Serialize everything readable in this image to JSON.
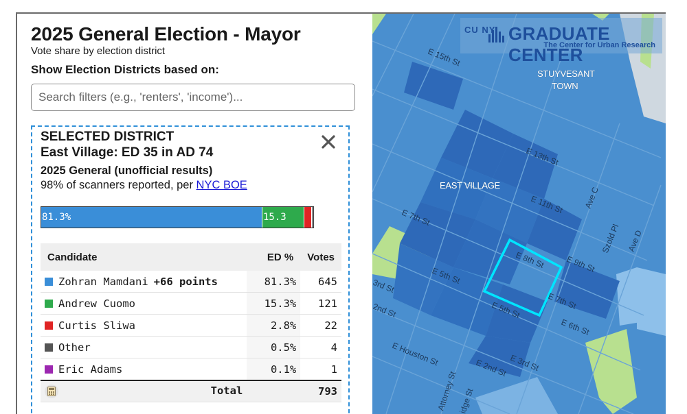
{
  "header": {
    "title": "2025 General Election - Mayor",
    "subtitle": "Vote share by election district",
    "filter_label": "Show Election Districts based on:"
  },
  "search": {
    "placeholder": "Search filters (e.g., 'renters', 'income')...",
    "value": ""
  },
  "selected": {
    "heading": "SELECTED DISTRICT",
    "district": "East Village: ED 35 in AD 74",
    "results_title": "2025 General (unofficial results)",
    "reported_text": "98% of scanners reported, per ",
    "reported_link": "NYC BOE",
    "bar": [
      {
        "share": 81.3,
        "label": "81.3%",
        "color": "#3a8ed8"
      },
      {
        "share": 15.3,
        "label": "15.3",
        "color": "#2eaa4c"
      },
      {
        "share": 2.8,
        "label": "",
        "color": "#e02424"
      },
      {
        "share": 0.5,
        "label": "",
        "color": "#555555"
      },
      {
        "share": 0.1,
        "label": "",
        "color": "#9c27b0"
      }
    ],
    "table": {
      "headers": {
        "candidate": "Candidate",
        "pct": "ED %",
        "votes": "Votes"
      },
      "rows": [
        {
          "name": "Zohran Mamdani",
          "lead": "+66 points",
          "pct": "81.3%",
          "votes": "645",
          "color": "#3a8ed8"
        },
        {
          "name": "Andrew Cuomo",
          "lead": "",
          "pct": "15.3%",
          "votes": "121",
          "color": "#2eaa4c"
        },
        {
          "name": "Curtis Sliwa",
          "lead": "",
          "pct": "2.8%",
          "votes": "22",
          "color": "#e02424"
        },
        {
          "name": "Other",
          "lead": "",
          "pct": "0.5%",
          "votes": "4",
          "color": "#555555"
        },
        {
          "name": "Eric Adams",
          "lead": "",
          "pct": "0.1%",
          "votes": "1",
          "color": "#9c27b0"
        }
      ],
      "total_label": "Total",
      "total_votes": "793"
    }
  },
  "map": {
    "logo": {
      "cuny": "CU NY",
      "main": "GRADUATE CENTER",
      "sub": "The Center for Urban Research"
    },
    "areas": [
      "STUYVESANT",
      "TOWN",
      "EAST VILLAGE"
    ],
    "streets": [
      "E 15th St",
      "E 13th St",
      "E 11th St",
      "E 9th St",
      "E 8th St",
      "E 7th St",
      "E 7th St",
      "E 6th St",
      "E 5th St",
      "E 5th St",
      "3rd St",
      "2nd St",
      "E Houston St",
      "E 2nd St",
      "E 3rd St",
      "Ave C",
      "Ave D",
      "Szold Pl",
      "Attorney St",
      "idge St"
    ],
    "colors": {
      "water": "#cfd8e0",
      "park": "#b8e08f",
      "dark": "#2e69b8",
      "mid": "#4a8fcf",
      "light": "#8ec0ea",
      "highlight": "#00e5ff"
    }
  }
}
